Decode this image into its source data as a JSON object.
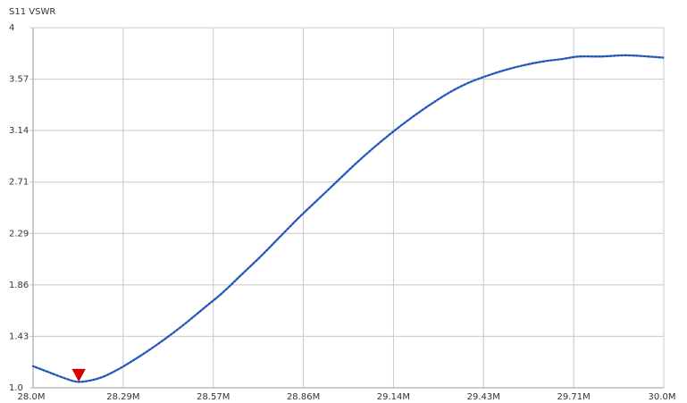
{
  "chart_data": {
    "type": "line",
    "title": "S11 VSWR",
    "xlabel": "",
    "ylabel": "",
    "xlim": [
      28.0,
      30.0
    ],
    "ylim": [
      1.0,
      4.0
    ],
    "x_tick_labels": [
      "28.0M",
      "28.29M",
      "28.57M",
      "28.86M",
      "29.14M",
      "29.43M",
      "29.71M",
      "30.0M"
    ],
    "y_tick_labels": [
      "1.0",
      "1.43",
      "1.86",
      "2.29",
      "2.71",
      "3.14",
      "3.57",
      "4"
    ],
    "grid": true,
    "series": [
      {
        "color": "#2f66c9",
        "x": [
          28.0,
          28.05,
          28.1,
          28.14,
          28.18,
          28.22,
          28.26,
          28.3,
          28.36,
          28.42,
          28.48,
          28.54,
          28.6,
          28.66,
          28.72,
          28.78,
          28.84,
          28.9,
          28.96,
          29.02,
          29.08,
          29.14,
          29.2,
          29.26,
          29.32,
          29.38,
          29.44,
          29.5,
          29.56,
          29.62,
          29.68,
          29.73,
          29.8,
          29.88,
          29.95,
          30.0
        ],
        "y": [
          1.18,
          1.13,
          1.08,
          1.05,
          1.06,
          1.09,
          1.14,
          1.2,
          1.3,
          1.41,
          1.53,
          1.66,
          1.79,
          1.94,
          2.09,
          2.25,
          2.41,
          2.56,
          2.71,
          2.86,
          3.0,
          3.13,
          3.25,
          3.36,
          3.46,
          3.54,
          3.6,
          3.65,
          3.69,
          3.72,
          3.74,
          3.76,
          3.76,
          3.77,
          3.76,
          3.75
        ]
      }
    ],
    "marker": {
      "x": 28.145,
      "y": 1.05,
      "color": "#e00000",
      "shape": "triangle-down"
    }
  }
}
